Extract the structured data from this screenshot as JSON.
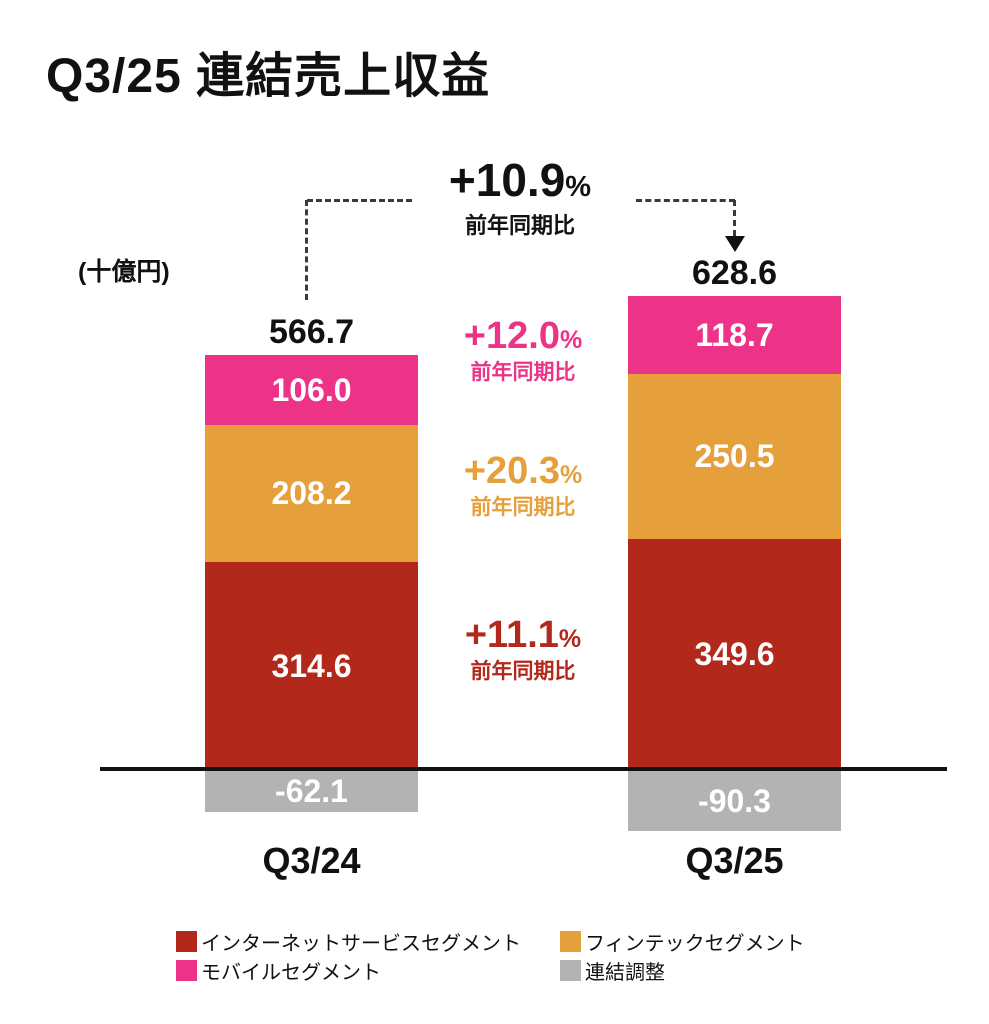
{
  "header": {
    "title": "Q3/25 連結売上収益"
  },
  "unit_label": "(十億円)",
  "yoy_callout": {
    "value": "+10.9",
    "percent_sign": "%",
    "sublabel": "前年同期比"
  },
  "segment_callouts": [
    {
      "value": "+12.0",
      "percent_sign": "%",
      "sublabel": "前年同期比",
      "color": "#EC3387"
    },
    {
      "value": "+20.3",
      "percent_sign": "%",
      "sublabel": "前年同期比",
      "color": "#E5A03C"
    },
    {
      "value": "+11.1",
      "percent_sign": "%",
      "sublabel": "前年同期比",
      "color": "#B2281A"
    }
  ],
  "chart_data": {
    "type": "bar",
    "stacked": true,
    "title": "Q3/25 連結売上収益",
    "unit": "十億円",
    "categories": [
      "Q3/24",
      "Q3/25"
    ],
    "totals": [
      566.7,
      628.6
    ],
    "series": [
      {
        "name": "インターネットサービスセグメント",
        "color": "#B2281A",
        "values": [
          314.6,
          349.6
        ]
      },
      {
        "name": "フィンテックセグメント",
        "color": "#E5A03C",
        "values": [
          208.2,
          250.5
        ]
      },
      {
        "name": "モバイルセグメント",
        "color": "#EC3387",
        "values": [
          106.0,
          118.7
        ]
      },
      {
        "name": "連結調整",
        "color": "#B3B3B3",
        "values": [
          -62.1,
          -90.3
        ]
      }
    ],
    "yoy_total": "+10.9% 前年同期比",
    "yoy_by_segment": {
      "モバイルセグメント": "+12.0%",
      "フィンテックセグメント": "+20.3%",
      "インターネットサービスセグメント": "+11.1%"
    },
    "legend_position": "bottom",
    "axes": "no gridlines, single black zero baseline"
  },
  "colors": {
    "internet_services": "#B2281A",
    "fintech": "#E5A03C",
    "mobile": "#EC3387",
    "adjustment": "#B3B3B3",
    "text": "#111111"
  }
}
